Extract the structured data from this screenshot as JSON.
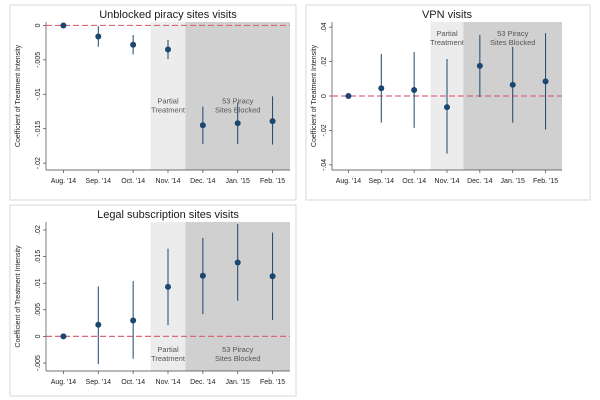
{
  "chart_data": [
    {
      "type": "scatter",
      "title": "Unblocked piracy sites visits",
      "ylabel": "Coefficient of Treatment Intensity",
      "categories": [
        "Aug. '14",
        "Sep. '14",
        "Oct. '14",
        "Nov. '14",
        "Dec. '14",
        "Jan. '15",
        "Feb. '15"
      ],
      "yticks": [
        "0",
        "-.005",
        "-.01",
        "-.015",
        "-.02"
      ],
      "ylim": [
        -0.021,
        0.0005
      ],
      "reference_line": 0,
      "points": [
        {
          "value": 0.0,
          "ci": [
            0.0,
            0.0
          ]
        },
        {
          "value": -0.0016,
          "ci": [
            -0.0031,
            -0.0001
          ]
        },
        {
          "value": -0.0028,
          "ci": [
            -0.0042,
            -0.0014
          ]
        },
        {
          "value": -0.0035,
          "ci": [
            -0.0049,
            -0.0021
          ]
        },
        {
          "value": -0.0145,
          "ci": [
            -0.0172,
            -0.0118
          ]
        },
        {
          "value": -0.0142,
          "ci": [
            -0.0172,
            -0.0112
          ]
        },
        {
          "value": -0.0139,
          "ci": [
            -0.0173,
            -0.0103
          ]
        }
      ],
      "shading": [
        {
          "from": 3,
          "to": 3,
          "label": [
            "Partial",
            "Treatment"
          ]
        },
        {
          "from": 4,
          "to": 6,
          "label": [
            "53 Piracy",
            "Sites Blocked"
          ]
        }
      ],
      "colors": {
        "marker": "#1a476f",
        "reference": "#d9687a",
        "light": "#ececec",
        "dark": "#d0d0d0"
      }
    },
    {
      "type": "scatter",
      "title": "VPN visits",
      "ylabel": "Coefficient of Treatment Intensity",
      "categories": [
        "Aug. '14",
        "Sep. '14",
        "Oct. '14",
        "Nov. '14",
        "Dec. '14",
        "Jan. '15",
        "Feb. '15"
      ],
      "yticks": [
        ".04",
        ".02",
        "0",
        "-.02",
        "-.04"
      ],
      "ylim": [
        -0.043,
        0.043
      ],
      "reference_line": 0,
      "points": [
        {
          "value": 0.0,
          "ci": [
            0.0,
            0.0
          ]
        },
        {
          "value": 0.0045,
          "ci": [
            -0.0155,
            0.0245
          ]
        },
        {
          "value": 0.0035,
          "ci": [
            -0.0185,
            0.0255
          ]
        },
        {
          "value": -0.0065,
          "ci": [
            -0.0335,
            0.0215
          ]
        },
        {
          "value": 0.0175,
          "ci": [
            -0.0005,
            0.0355
          ]
        },
        {
          "value": 0.0065,
          "ci": [
            -0.0155,
            0.0285
          ]
        },
        {
          "value": 0.0085,
          "ci": [
            -0.0195,
            0.0365
          ]
        }
      ],
      "shading": [
        {
          "from": 3,
          "to": 3,
          "label": [
            "Partial",
            "Treatment"
          ]
        },
        {
          "from": 4,
          "to": 6,
          "label": [
            "53 Piracy",
            "Sites Blocked"
          ]
        }
      ],
      "colors": {
        "marker": "#1a476f",
        "reference": "#d9687a",
        "light": "#ececec",
        "dark": "#d0d0d0"
      }
    },
    {
      "type": "scatter",
      "title": "Legal subscription sites visits",
      "ylabel": "Coefficient of Treatment Intensity",
      "categories": [
        "Aug. '14",
        "Sep. '14",
        "Oct. '14",
        "Nov. '14",
        "Dec. '14",
        "Jan. '15",
        "Feb. '15"
      ],
      "yticks": [
        ".02",
        ".015",
        ".01",
        ".005",
        "0",
        "-.005"
      ],
      "ylim": [
        -0.0065,
        0.0215
      ],
      "reference_line": 0,
      "points": [
        {
          "value": 0.0,
          "ci": [
            0.0,
            0.0
          ]
        },
        {
          "value": 0.0022,
          "ci": [
            -0.0052,
            0.0094
          ]
        },
        {
          "value": 0.003,
          "ci": [
            -0.0042,
            0.0104
          ]
        },
        {
          "value": 0.0093,
          "ci": [
            0.0021,
            0.0165
          ]
        },
        {
          "value": 0.0114,
          "ci": [
            0.0042,
            0.0185
          ]
        },
        {
          "value": 0.0139,
          "ci": [
            0.0067,
            0.0211
          ]
        },
        {
          "value": 0.0113,
          "ci": [
            0.0031,
            0.0195
          ]
        }
      ],
      "shading": [
        {
          "from": 3,
          "to": 3,
          "label": [
            "Partial",
            "Treatment"
          ]
        },
        {
          "from": 4,
          "to": 6,
          "label": [
            "53 Piracy",
            "Sites Blocked"
          ]
        }
      ],
      "colors": {
        "marker": "#1a476f",
        "reference": "#d9687a",
        "light": "#ececec",
        "dark": "#d0d0d0"
      }
    }
  ]
}
